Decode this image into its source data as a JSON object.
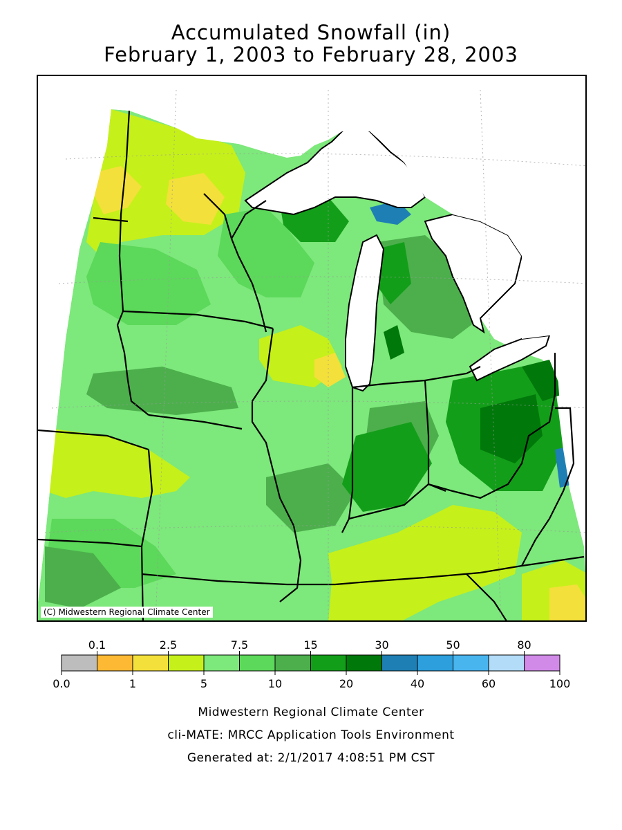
{
  "title": {
    "line1": "Accumulated Snowfall (in)",
    "line2": "February 1, 2003 to February 28, 2003"
  },
  "map": {
    "copyright": "(C) Midwestern Regional Climate Center",
    "states_shown": [
      "Minnesota",
      "Iowa",
      "Missouri",
      "Wisconsin",
      "Illinois",
      "Michigan",
      "Indiana",
      "Ohio",
      "Kentucky"
    ]
  },
  "legend": {
    "upper_labels": [
      "0.1",
      "2.5",
      "7.5",
      "15",
      "30",
      "50",
      "80"
    ],
    "lower_labels": [
      "0.0",
      "1",
      "5",
      "10",
      "20",
      "40",
      "60",
      "100"
    ],
    "colors": [
      "#bdbdbd",
      "#fdb933",
      "#f4e03a",
      "#c6f01a",
      "#7de87b",
      "#5cd85a",
      "#4caf4c",
      "#139e19",
      "#00780a",
      "#1e7fb4",
      "#2c9fdc",
      "#49b5ef",
      "#b3dcf8",
      "#d18ae8"
    ]
  },
  "footer": {
    "line1": "Midwestern Regional Climate Center",
    "line2": "cli-MATE: MRCC Application Tools Environment",
    "line3": "Generated at: 2/1/2017 4:08:51 PM CST"
  }
}
